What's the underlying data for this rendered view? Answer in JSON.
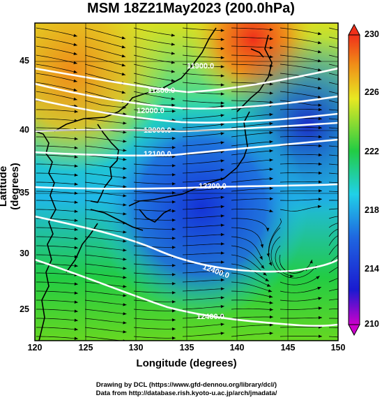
{
  "title": "MSM 18Z21May2023 (200.0hPa)",
  "xaxis": {
    "label": "Longitude (degrees)",
    "ticks": [
      "120",
      "125",
      "130",
      "135",
      "140",
      "145",
      "150"
    ]
  },
  "yaxis": {
    "label": "Latitude  (degrees)",
    "ticks": [
      "25",
      "30",
      "35",
      "40",
      "45"
    ]
  },
  "colorbar": {
    "ticks": [
      "210",
      "214",
      "218",
      "222",
      "226",
      "230"
    ]
  },
  "contour_labels": [
    "12000.0",
    "11900.0",
    "11800.0",
    "12100.0",
    "12200.0",
    "12400.0",
    "12400.0"
  ],
  "credits": {
    "line1": "Drawing by DCL (https://www.gfd-dennou.org/library/dcl/)",
    "line2": "Data from http://database.rish.kyoto-u.ac.jp/arch/jmadata/"
  },
  "chart_data": {
    "type": "heatmap",
    "variable_level": "200.0hPa",
    "xlim": [
      120,
      150
    ],
    "ylim": [
      22.5,
      48
    ],
    "colorbar_range": [
      210,
      230
    ],
    "colors": {
      "min": "#cc00cc",
      "blue": "#1433d6",
      "cyan": "#20d0e8",
      "green": "#22cc44",
      "yellow": "#e8e822",
      "orange": "#f08c18",
      "max": "#f0301a"
    },
    "contours": [
      {
        "value": 11800,
        "label_pos": [
          137.5,
          43
        ]
      },
      {
        "value": 11900,
        "label_pos": [
          132,
          41.7
        ]
      },
      {
        "value": 12000,
        "label_pos": [
          132.5,
          40
        ]
      },
      {
        "value": 12100,
        "label_pos": [
          132.5,
          38
        ]
      },
      {
        "value": 12200,
        "label_pos": [
          139,
          35.8
        ]
      },
      {
        "value": 12400,
        "label_pos": [
          139,
          29
        ]
      },
      {
        "value": 12400,
        "label_pos": [
          138,
          24
        ]
      }
    ],
    "streamlines": "westerly flow with cyclonic curvature near 145E 30N"
  }
}
